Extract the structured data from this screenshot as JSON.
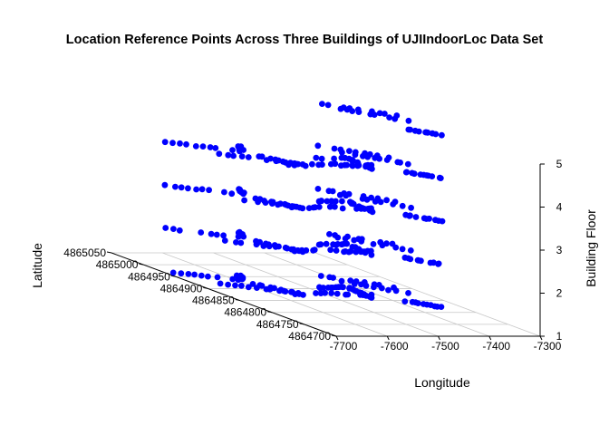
{
  "chart_data": {
    "type": "scatter3d",
    "title": "Location Reference Points Across Three Buildings of UJIIndoorLoc Data Set",
    "xlabel": "Longitude",
    "ylabel": "Latitude",
    "zlabel": "Building Floor",
    "x_ticks": [
      "-7700",
      "-7600",
      "-7500",
      "-7400",
      "-7300"
    ],
    "y_ticks": [
      "4864700",
      "4864750",
      "4864800",
      "4864850",
      "4864900",
      "4864950",
      "4865000",
      "4865050"
    ],
    "z_ticks": [
      "1",
      "2",
      "3",
      "4",
      "5"
    ],
    "xlim": [
      -7700,
      -7300
    ],
    "ylim": [
      4864700,
      4865050
    ],
    "zlim": [
      1,
      5
    ],
    "grid": true,
    "point_color": "#0000FF",
    "floors": [
      1,
      2,
      3,
      4
    ],
    "floor5_building": 2,
    "buildings": [
      {
        "id": 0,
        "segments": [
          {
            "from": [
              -7692,
              4864972
            ],
            "to": [
              -7594,
              4864935
            ]
          },
          {
            "from": [
              -7648,
              4864922
            ],
            "to": [
              -7552,
              4864885
            ]
          },
          {
            "from": [
              -7585,
              4864938
            ],
            "to": [
              -7568,
              4864956
            ]
          }
        ]
      },
      {
        "id": 1,
        "segments": [
          {
            "from": [
              -7585,
              4864918
            ],
            "to": [
              -7545,
              4864875
            ]
          },
          {
            "from": [
              -7568,
              4864878
            ],
            "to": [
              -7475,
              4864880
            ]
          },
          {
            "from": [
              -7468,
              4864875
            ],
            "to": [
              -7410,
              4864875
            ]
          },
          {
            "from": [
              -7478,
              4864905
            ],
            "to": [
              -7420,
              4864905
            ]
          },
          {
            "from": [
              -7428,
              4864860
            ],
            "to": [
              -7420,
              4864900
            ]
          }
        ]
      },
      {
        "id": 2,
        "segments": [
          {
            "from": [
              -7412,
              4864955
            ],
            "to": [
              -7328,
              4864905
            ]
          },
          {
            "from": [
              -7400,
              4864932
            ],
            "to": [
              -7330,
              4864880
            ]
          },
          {
            "from": [
              -7380,
              4864848
            ],
            "to": [
              -7340,
              4864822
            ]
          }
        ]
      }
    ]
  }
}
